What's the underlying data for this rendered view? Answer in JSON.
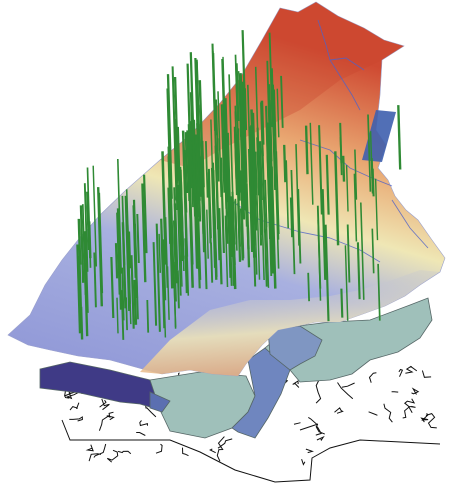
{
  "colors": {
    "background": "#ffffff",
    "elevation_low": "#8d95d6",
    "elevation_mid": "#efe7b5",
    "elevation_high": "#cf4a32",
    "stream_lines": "#4f62c8",
    "well_bars": "#2f8a34",
    "base_zone_dark": "#3f3a86",
    "base_zone_mid": "#6f86bf",
    "base_zone_light": "#9fc0ba",
    "road_network": "#111111"
  },
  "layers": [
    {
      "id": "terrain",
      "icon": "terrain-icon"
    },
    {
      "id": "wells",
      "icon": "bar-icon"
    },
    {
      "id": "zones",
      "icon": "polygon-icon"
    },
    {
      "id": "roads",
      "icon": "line-icon"
    }
  ]
}
